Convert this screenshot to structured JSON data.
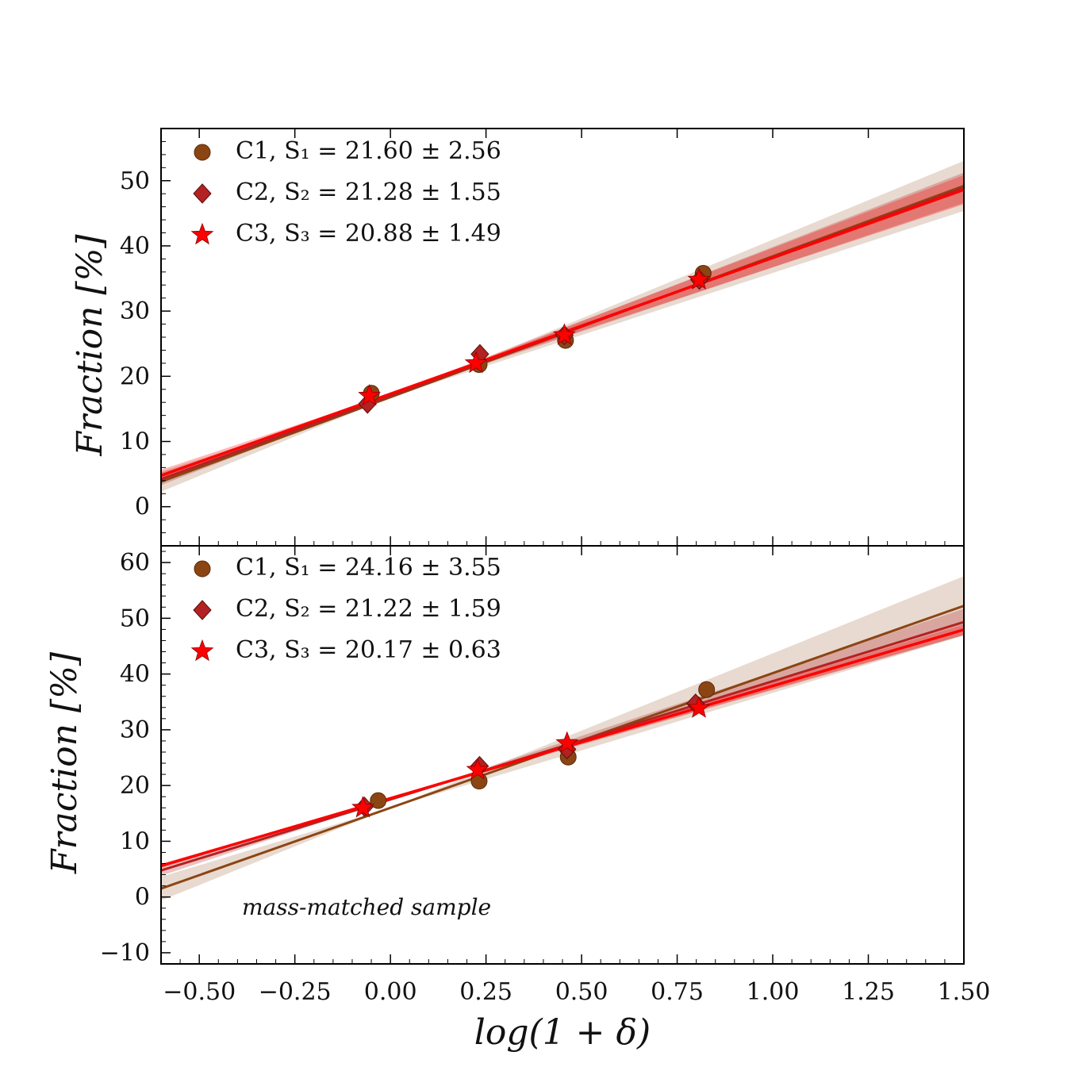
{
  "chart_data": [
    {
      "type": "scatter",
      "panel": "top",
      "xlim": [
        -0.6,
        1.5
      ],
      "ylim": [
        -6,
        58
      ],
      "ylabel": "Fraction [%]",
      "xlabel": "",
      "x_ticks": [
        -0.5,
        -0.25,
        0.0,
        0.25,
        0.5,
        0.75,
        1.0,
        1.25,
        1.5
      ],
      "x_tick_labels": [],
      "y_ticks": [
        0,
        10,
        20,
        30,
        40,
        50
      ],
      "y_tick_labels": [
        "0",
        "10",
        "20",
        "30",
        "40",
        "50"
      ],
      "annotation": "",
      "series": [
        {
          "name": "C1",
          "legend": "C1,  S₁ = 21.60 ± 2.56",
          "marker": "circle",
          "color": "#8B4513",
          "x": [
            -0.05,
            0.232,
            0.458,
            0.818
          ],
          "y": [
            17.4,
            21.8,
            25.5,
            35.8
          ],
          "fit": {
            "slope": 21.6,
            "intercept": 16.8,
            "band": 2.56
          }
        },
        {
          "name": "C2",
          "legend": "C2,  S₂ = 21.28 ± 1.55",
          "marker": "diamond",
          "color": "#B22222",
          "x": [
            -0.06,
            0.234,
            0.455,
            0.808
          ],
          "y": [
            15.8,
            23.4,
            26.3,
            34.8
          ],
          "fit": {
            "slope": 21.28,
            "intercept": 17.0,
            "band": 1.55
          }
        },
        {
          "name": "C3",
          "legend": "C3,  S₃ = 20.88 ± 1.49",
          "marker": "star",
          "color": "#FF0000",
          "x": [
            -0.055,
            0.224,
            0.455,
            0.807
          ],
          "y": [
            17.0,
            22.0,
            26.3,
            34.8
          ],
          "fit": {
            "slope": 20.88,
            "intercept": 17.3,
            "band": 1.49
          }
        }
      ]
    },
    {
      "type": "scatter",
      "panel": "bottom",
      "xlim": [
        -0.6,
        1.5
      ],
      "ylim": [
        -12,
        63
      ],
      "ylabel": "Fraction [%]",
      "xlabel": "log(1 + δ)",
      "x_ticks": [
        -0.5,
        -0.25,
        0.0,
        0.25,
        0.5,
        0.75,
        1.0,
        1.25,
        1.5
      ],
      "x_tick_labels": [
        "−0.50",
        "−0.25",
        "0.00",
        "0.25",
        "0.50",
        "0.75",
        "1.00",
        "1.25",
        "1.50"
      ],
      "y_ticks": [
        -10,
        0,
        10,
        20,
        30,
        40,
        50,
        60
      ],
      "y_tick_labels": [
        "−10",
        "0",
        "10",
        "20",
        "30",
        "40",
        "50",
        "60"
      ],
      "annotation": "mass-matched sample",
      "series": [
        {
          "name": "C1",
          "legend": "C1,  S₁ = 24.16 ± 3.55",
          "marker": "circle",
          "color": "#8B4513",
          "x": [
            -0.032,
            0.232,
            0.465,
            0.827
          ],
          "y": [
            17.3,
            20.8,
            25.1,
            37.2
          ],
          "fit": {
            "slope": 24.16,
            "intercept": 16.0,
            "band": 3.55
          }
        },
        {
          "name": "C2",
          "legend": "C2,  S₂ = 21.22 ± 1.59",
          "marker": "diamond",
          "color": "#B22222",
          "x": [
            -0.068,
            0.233,
            0.462,
            0.798
          ],
          "y": [
            16.2,
            23.5,
            26.5,
            34.7
          ],
          "fit": {
            "slope": 21.22,
            "intercept": 17.5,
            "band": 1.59
          }
        },
        {
          "name": "C3",
          "legend": "C3,  S₃ = 20.17 ± 0.63",
          "marker": "star",
          "color": "#FF0000",
          "x": [
            -0.072,
            0.228,
            0.462,
            0.807
          ],
          "y": [
            16.0,
            22.8,
            27.6,
            33.9
          ],
          "fit": {
            "slope": 20.17,
            "intercept": 17.7,
            "band": 0.63
          }
        }
      ]
    }
  ]
}
